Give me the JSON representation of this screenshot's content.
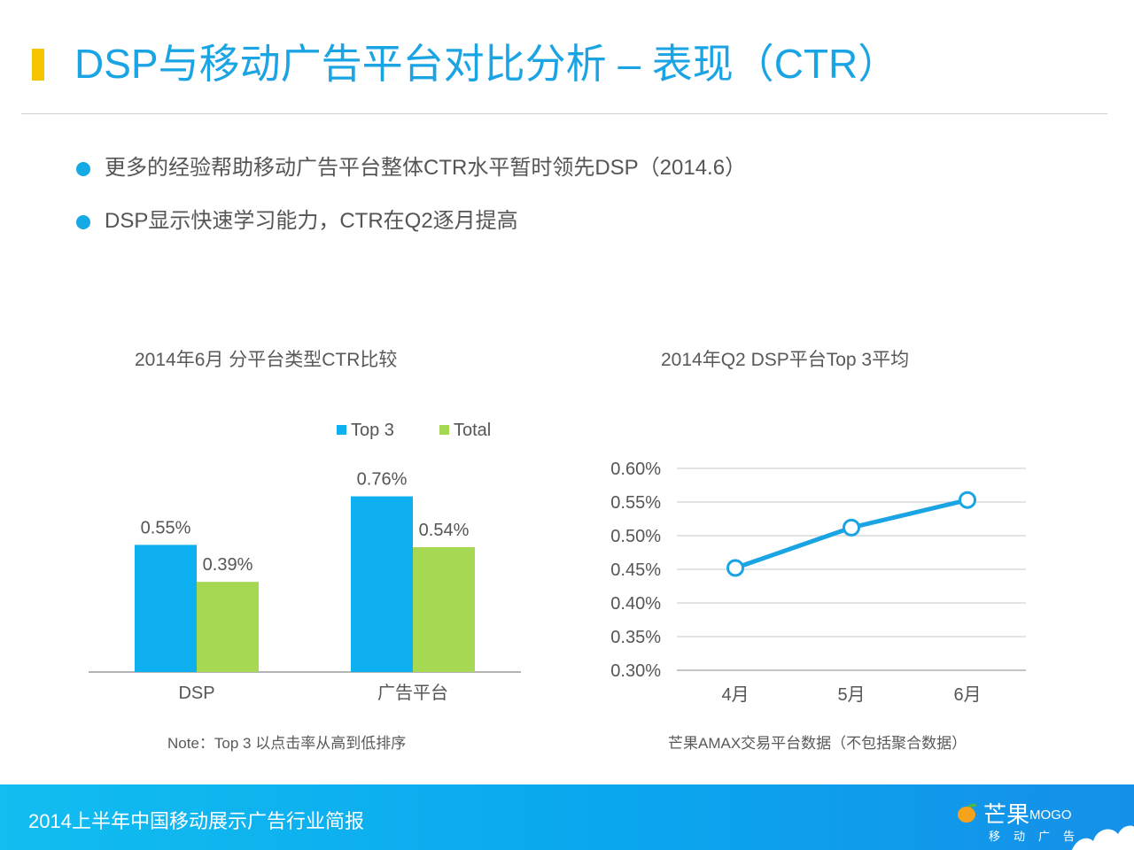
{
  "header": {
    "title": "DSP与移动广告平台对比分析 – 表现（CTR）"
  },
  "bullets": [
    "更多的经验帮助移动广告平台整体CTR水平暂时领先DSP（2014.6）",
    "DSP显示快速学习能力，CTR在Q2逐月提高"
  ],
  "left_chart": {
    "note": "Note：Top 3 以点击率从高到低排序"
  },
  "right_chart": {
    "note": "芒果AMAX交易平台数据（不包括聚合数据）"
  },
  "footer": {
    "text": "2014上半年中国移动展示广告行业简报",
    "brand": "芒果",
    "brand_sub": "MOGO",
    "brand_tag": "移动广告"
  },
  "colors": {
    "accent": "#1aa4e4",
    "title_bar": "#f7c500",
    "top3": "#0fb0ef",
    "total": "#a6d854",
    "line": "#1aa4e4",
    "footer": "#0aa6ee"
  },
  "chart_data": [
    {
      "type": "bar",
      "title": "2014年6月  分平台类型CTR比较",
      "categories": [
        "DSP",
        "广告平台"
      ],
      "series": [
        {
          "name": "Top 3",
          "values": [
            0.55,
            0.76
          ],
          "labels": [
            "0.55%",
            "0.76%"
          ]
        },
        {
          "name": "Total",
          "values": [
            0.39,
            0.54
          ],
          "labels": [
            "0.39%",
            "0.54%"
          ]
        }
      ],
      "unit": "%",
      "ylim": [
        0,
        0.9
      ],
      "legend": "top",
      "grid": false
    },
    {
      "type": "line",
      "title": "2014年Q2  DSP平台Top 3平均",
      "x": [
        "4月",
        "5月",
        "6月"
      ],
      "series": [
        {
          "values": [
            0.452,
            0.512,
            0.553
          ]
        }
      ],
      "yticks": [
        "0.30%",
        "0.35%",
        "0.40%",
        "0.45%",
        "0.50%",
        "0.55%",
        "0.60%"
      ],
      "ylim": [
        0.3,
        0.6
      ],
      "grid": true,
      "legend": "none"
    }
  ]
}
